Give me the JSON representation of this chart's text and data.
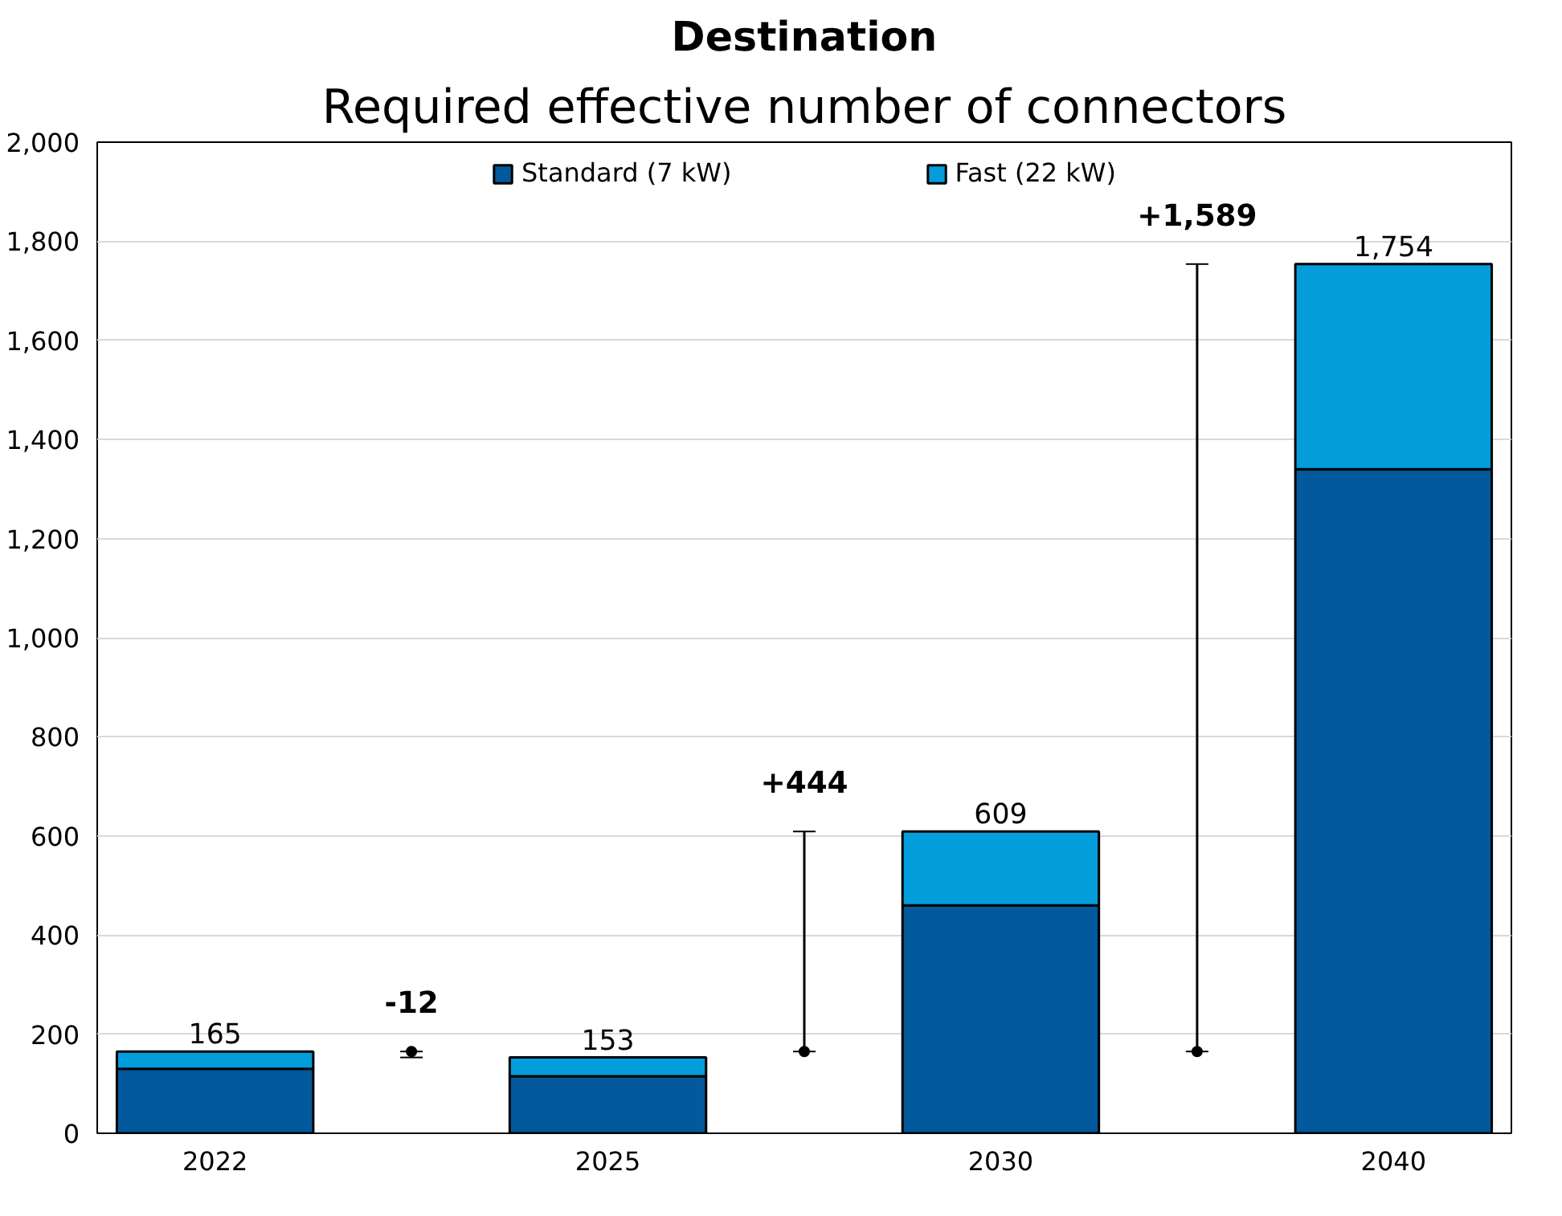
{
  "chart_data": {
    "type": "bar",
    "title": "Destination",
    "subtitle": "Required effective number of connectors",
    "categories": [
      "2022",
      null,
      "2025",
      null,
      "2030",
      null,
      "2040"
    ],
    "stacked": true,
    "series": [
      {
        "name": "Standard (7 kW)",
        "color": "#02599c",
        "values": [
          130,
          null,
          115,
          null,
          460,
          null,
          1340
        ]
      },
      {
        "name": "Fast (22 kW)",
        "color": "#039ddb",
        "values": [
          35,
          null,
          38,
          null,
          149,
          null,
          414
        ]
      },
      {
        "type": "scatter",
        "marker": "circle",
        "color": "#000000",
        "values": [
          null,
          165,
          null,
          165,
          null,
          165,
          null
        ],
        "errors": [
          null,
          [
            153,
            165
          ],
          null,
          [
            165,
            609
          ],
          null,
          [
            165,
            1754
          ],
          null
        ]
      }
    ],
    "totals": [
      "165",
      null,
      "153",
      null,
      "609",
      null,
      "1,754"
    ],
    "annotations": [
      {
        "text": "-12",
        "y": 165
      },
      {
        "text": "+444",
        "y": 609
      },
      {
        "text": "+1,589",
        "y": 1754
      }
    ],
    "ylim": [
      0,
      2000
    ],
    "yticks": [
      {
        "value": 0,
        "label": "0"
      },
      {
        "value": 200,
        "label": "200"
      },
      {
        "value": 400,
        "label": "400"
      },
      {
        "value": 600,
        "label": "600"
      },
      {
        "value": 800,
        "label": "800"
      },
      {
        "value": 1000,
        "label": "1,000"
      },
      {
        "value": 1200,
        "label": "1,200"
      },
      {
        "value": 1400,
        "label": "1,400"
      },
      {
        "value": 1600,
        "label": "1,600"
      },
      {
        "value": 1800,
        "label": "1,800"
      },
      {
        "value": 2000,
        "label": "2,000"
      }
    ],
    "grid": "y",
    "legend": "top"
  }
}
